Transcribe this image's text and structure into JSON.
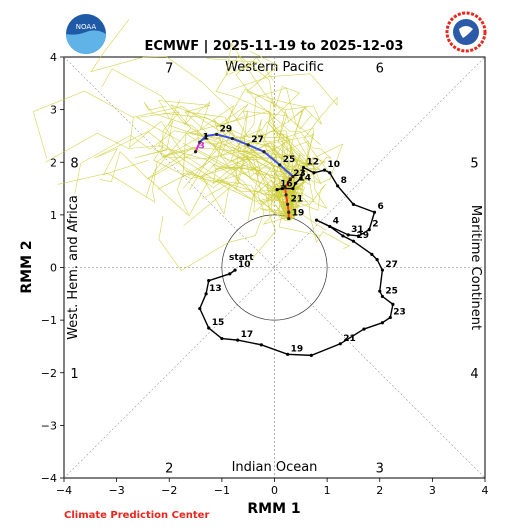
{
  "title": "ECMWF | 2025-11-19 to 2025-12-03",
  "credit": "Climate Prediction Center",
  "colors": {
    "observed": "#000000",
    "ens_members": "#cccc33",
    "ens_mean_early": "#ff3b1f",
    "ens_mean_late": "#3a4fe6",
    "ens_mean_end": "#cc33cc",
    "credit": "#e8261c"
  },
  "chart_data": {
    "type": "line",
    "xlabel": "RMM 1",
    "ylabel": "RMM 2",
    "xlim": [
      -4,
      4
    ],
    "ylim": [
      -4,
      4
    ],
    "xticks": [
      "−4",
      "−3",
      "−2",
      "−1",
      "0",
      "1",
      "2",
      "3",
      "4"
    ],
    "yticks": [
      "−4",
      "−3",
      "−2",
      "−1",
      "0",
      "1",
      "2",
      "3",
      "4"
    ],
    "regions": {
      "top": "Western Pacific",
      "bottom": "Indian Ocean",
      "left": "West. Hem. and Africa",
      "right": "Maritime Continent"
    },
    "phases": [
      {
        "label": "1",
        "x": -3.8,
        "y": -2.0
      },
      {
        "label": "2",
        "x": -2.0,
        "y": -3.8
      },
      {
        "label": "3",
        "x": 2.0,
        "y": -3.8
      },
      {
        "label": "4",
        "x": 3.8,
        "y": -2.0
      },
      {
        "label": "5",
        "x": 3.8,
        "y": 2.0
      },
      {
        "label": "6",
        "x": 2.0,
        "y": 3.8
      },
      {
        "label": "7",
        "x": -2.0,
        "y": 3.8
      },
      {
        "label": "8",
        "x": -3.8,
        "y": 2.0
      }
    ],
    "start_label": "start",
    "observed": {
      "points": [
        [
          -0.75,
          -0.05
        ],
        [
          -0.85,
          -0.12
        ],
        [
          -1.25,
          -0.25
        ],
        [
          -1.3,
          -0.5
        ],
        [
          -1.42,
          -0.78
        ],
        [
          -1.25,
          -1.15
        ],
        [
          -1.0,
          -1.35
        ],
        [
          -0.7,
          -1.38
        ],
        [
          -0.25,
          -1.47
        ],
        [
          0.25,
          -1.65
        ],
        [
          0.7,
          -1.67
        ],
        [
          1.25,
          -1.45
        ],
        [
          1.7,
          -1.17
        ],
        [
          2.05,
          -1.05
        ],
        [
          2.2,
          -0.95
        ],
        [
          2.25,
          -0.7
        ],
        [
          2.05,
          -0.55
        ],
        [
          2.0,
          -0.45
        ],
        [
          2.05,
          -0.05
        ],
        [
          1.95,
          0.15
        ],
        [
          1.85,
          0.25
        ],
        [
          1.5,
          0.5
        ],
        [
          1.3,
          0.6
        ],
        [
          1.05,
          0.78
        ],
        [
          0.8,
          0.9
        ],
        [
          1.4,
          0.62
        ],
        [
          1.6,
          0.6
        ],
        [
          1.8,
          0.72
        ],
        [
          1.9,
          1.05
        ],
        [
          1.5,
          1.2
        ],
        [
          1.2,
          1.55
        ],
        [
          1.05,
          1.8
        ],
        [
          0.95,
          1.85
        ],
        [
          0.75,
          1.8
        ],
        [
          0.55,
          1.9
        ],
        [
          0.5,
          1.7
        ],
        [
          0.4,
          1.6
        ],
        [
          0.35,
          1.5
        ],
        [
          0.15,
          1.5
        ],
        [
          0.05,
          1.48
        ]
      ],
      "labels": [
        {
          "t": "10",
          "i": 0
        },
        {
          "t": "13",
          "i": 3
        },
        {
          "t": "15",
          "i": 5
        },
        {
          "t": "17",
          "i": 7
        },
        {
          "t": "19",
          "i": 9
        },
        {
          "t": "21",
          "i": 11
        },
        {
          "t": "23",
          "i": 14
        },
        {
          "t": "25",
          "i": 16
        },
        {
          "t": "27",
          "i": 18
        },
        {
          "t": "29",
          "i": 21
        },
        {
          "t": "4",
          "i": 23
        },
        {
          "t": "31",
          "i": 25
        },
        {
          "t": "2",
          "i": 27
        },
        {
          "t": "6",
          "i": 28
        },
        {
          "t": "8",
          "i": 30
        },
        {
          "t": "10",
          "i": 32
        },
        {
          "t": "12",
          "i": 34
        },
        {
          "t": "14",
          "i": 36
        },
        {
          "t": "16",
          "i": 39
        }
      ]
    },
    "ensemble_mean": {
      "points": [
        [
          0.27,
          0.93
        ],
        [
          0.27,
          1.05
        ],
        [
          0.25,
          1.2
        ],
        [
          0.22,
          1.38
        ],
        [
          0.2,
          1.52
        ],
        [
          0.3,
          1.68
        ],
        [
          0.35,
          1.73
        ],
        [
          0.1,
          1.95
        ],
        [
          -0.2,
          2.2
        ],
        [
          -0.5,
          2.33
        ],
        [
          -0.8,
          2.45
        ],
        [
          -1.1,
          2.53
        ],
        [
          -1.3,
          2.5
        ],
        [
          -1.42,
          2.38
        ],
        [
          -1.5,
          2.2
        ]
      ],
      "labels": [
        {
          "t": "19",
          "i": 0
        },
        {
          "t": "21",
          "i": 2
        },
        {
          "t": "23",
          "i": 5
        },
        {
          "t": "25",
          "i": 7
        },
        {
          "t": "27",
          "i": 9
        },
        {
          "t": "29",
          "i": 11
        },
        {
          "t": "1",
          "i": 13
        },
        {
          "t": "3",
          "i": 14
        }
      ]
    },
    "members": {
      "count": 50,
      "start": [
        0.27,
        0.93
      ]
    }
  }
}
